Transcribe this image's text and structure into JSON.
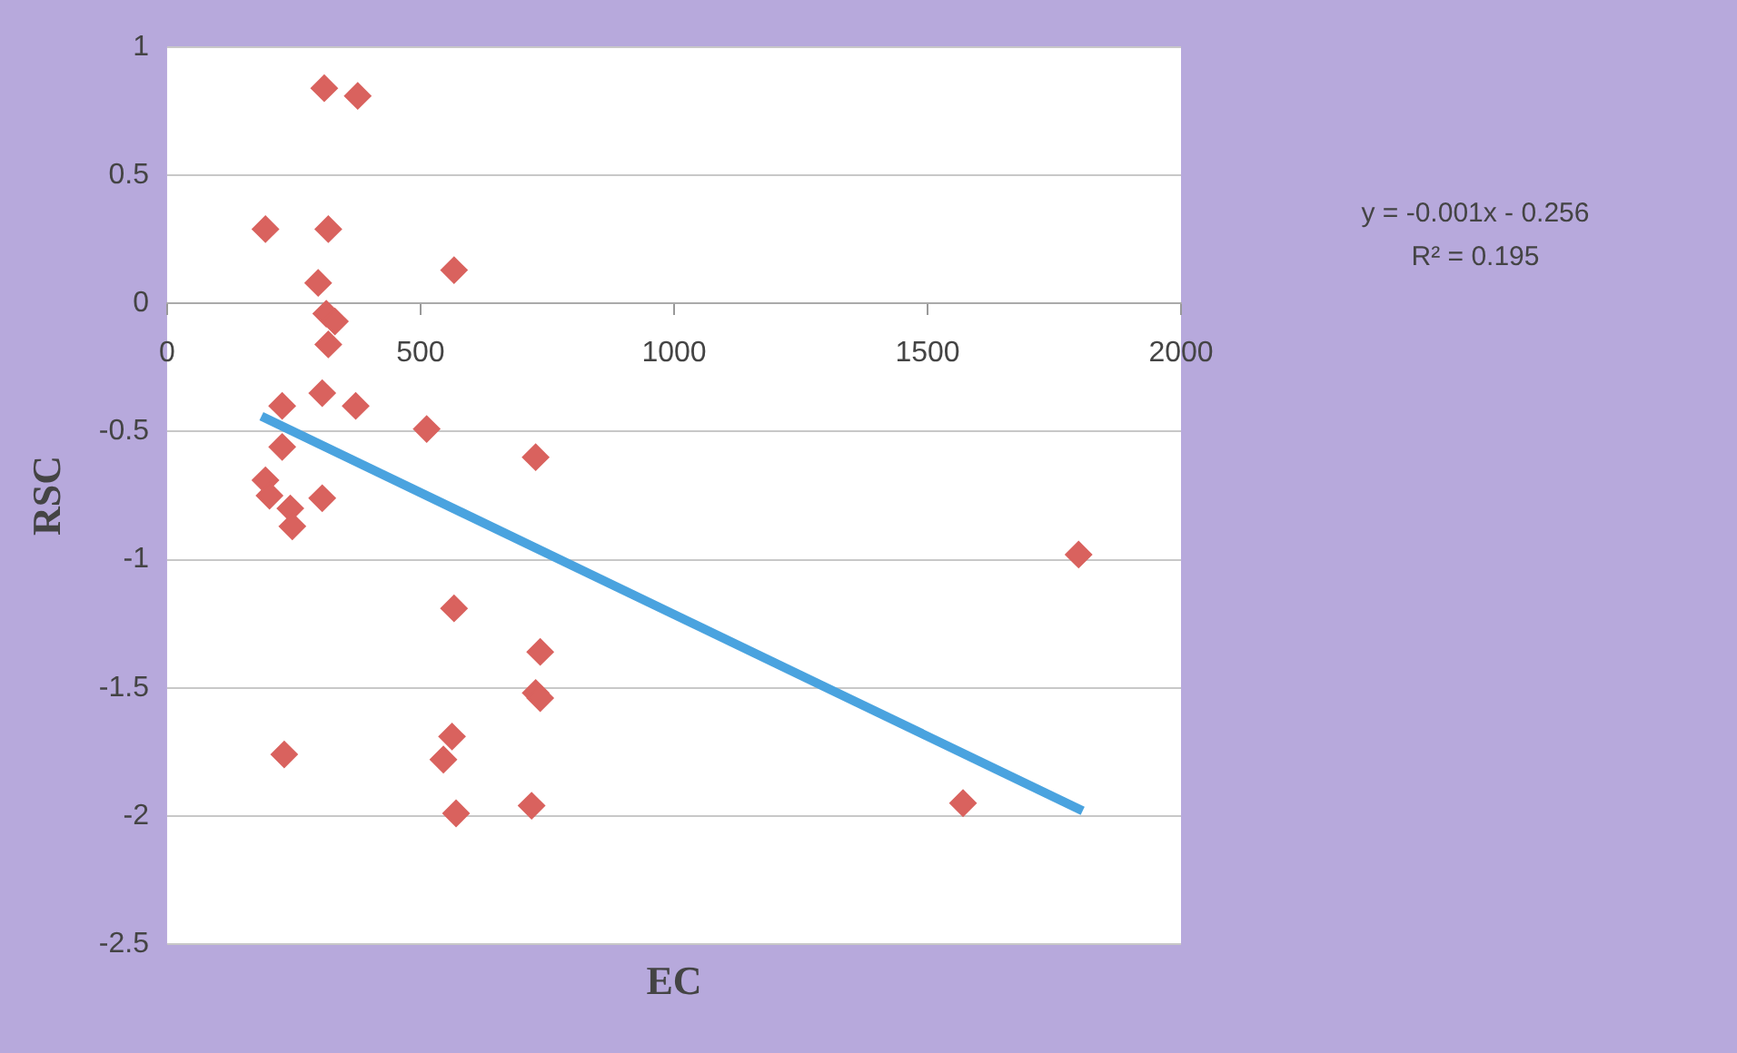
{
  "chart_data": {
    "type": "scatter",
    "xlabel": "EC",
    "ylabel": "RSC",
    "xlim": [
      0,
      2000
    ],
    "xticks": [
      0,
      500,
      1000,
      1500,
      2000
    ],
    "ylim": [
      -2.5,
      1
    ],
    "yticks": [
      -2.5,
      -2,
      -1.5,
      -1,
      -0.5,
      0,
      0.5,
      1
    ],
    "grid": "y",
    "legend": false,
    "annotations": [
      "y = -0.001x - 0.256",
      "R² = 0.195"
    ],
    "series": [
      {
        "marker": "diamond",
        "color": "#d9625e",
        "x": [
          310,
          376,
          194,
          318,
          566,
          298,
          314,
          331,
          318,
          306,
          372,
          227,
          512,
          727,
          227,
          194,
          202,
          243,
          247,
          306,
          566,
          736,
          727,
          736,
          231,
          562,
          545,
          570,
          719,
          1798,
          1570
        ],
        "values": [
          0.84,
          0.81,
          0.29,
          0.29,
          0.13,
          0.08,
          -0.04,
          -0.07,
          -0.16,
          -0.35,
          -0.4,
          -0.4,
          -0.49,
          -0.6,
          -0.56,
          -0.69,
          -0.75,
          -0.8,
          -0.87,
          -0.76,
          -1.19,
          -1.36,
          -1.52,
          -1.54,
          -1.76,
          -1.69,
          -1.78,
          -1.99,
          -1.96,
          -0.98,
          -1.95
        ]
      },
      {
        "type": "line",
        "color": "#4aa3df",
        "x": [
          186,
          1806
        ],
        "values": [
          -0.44,
          -1.98
        ]
      }
    ]
  }
}
